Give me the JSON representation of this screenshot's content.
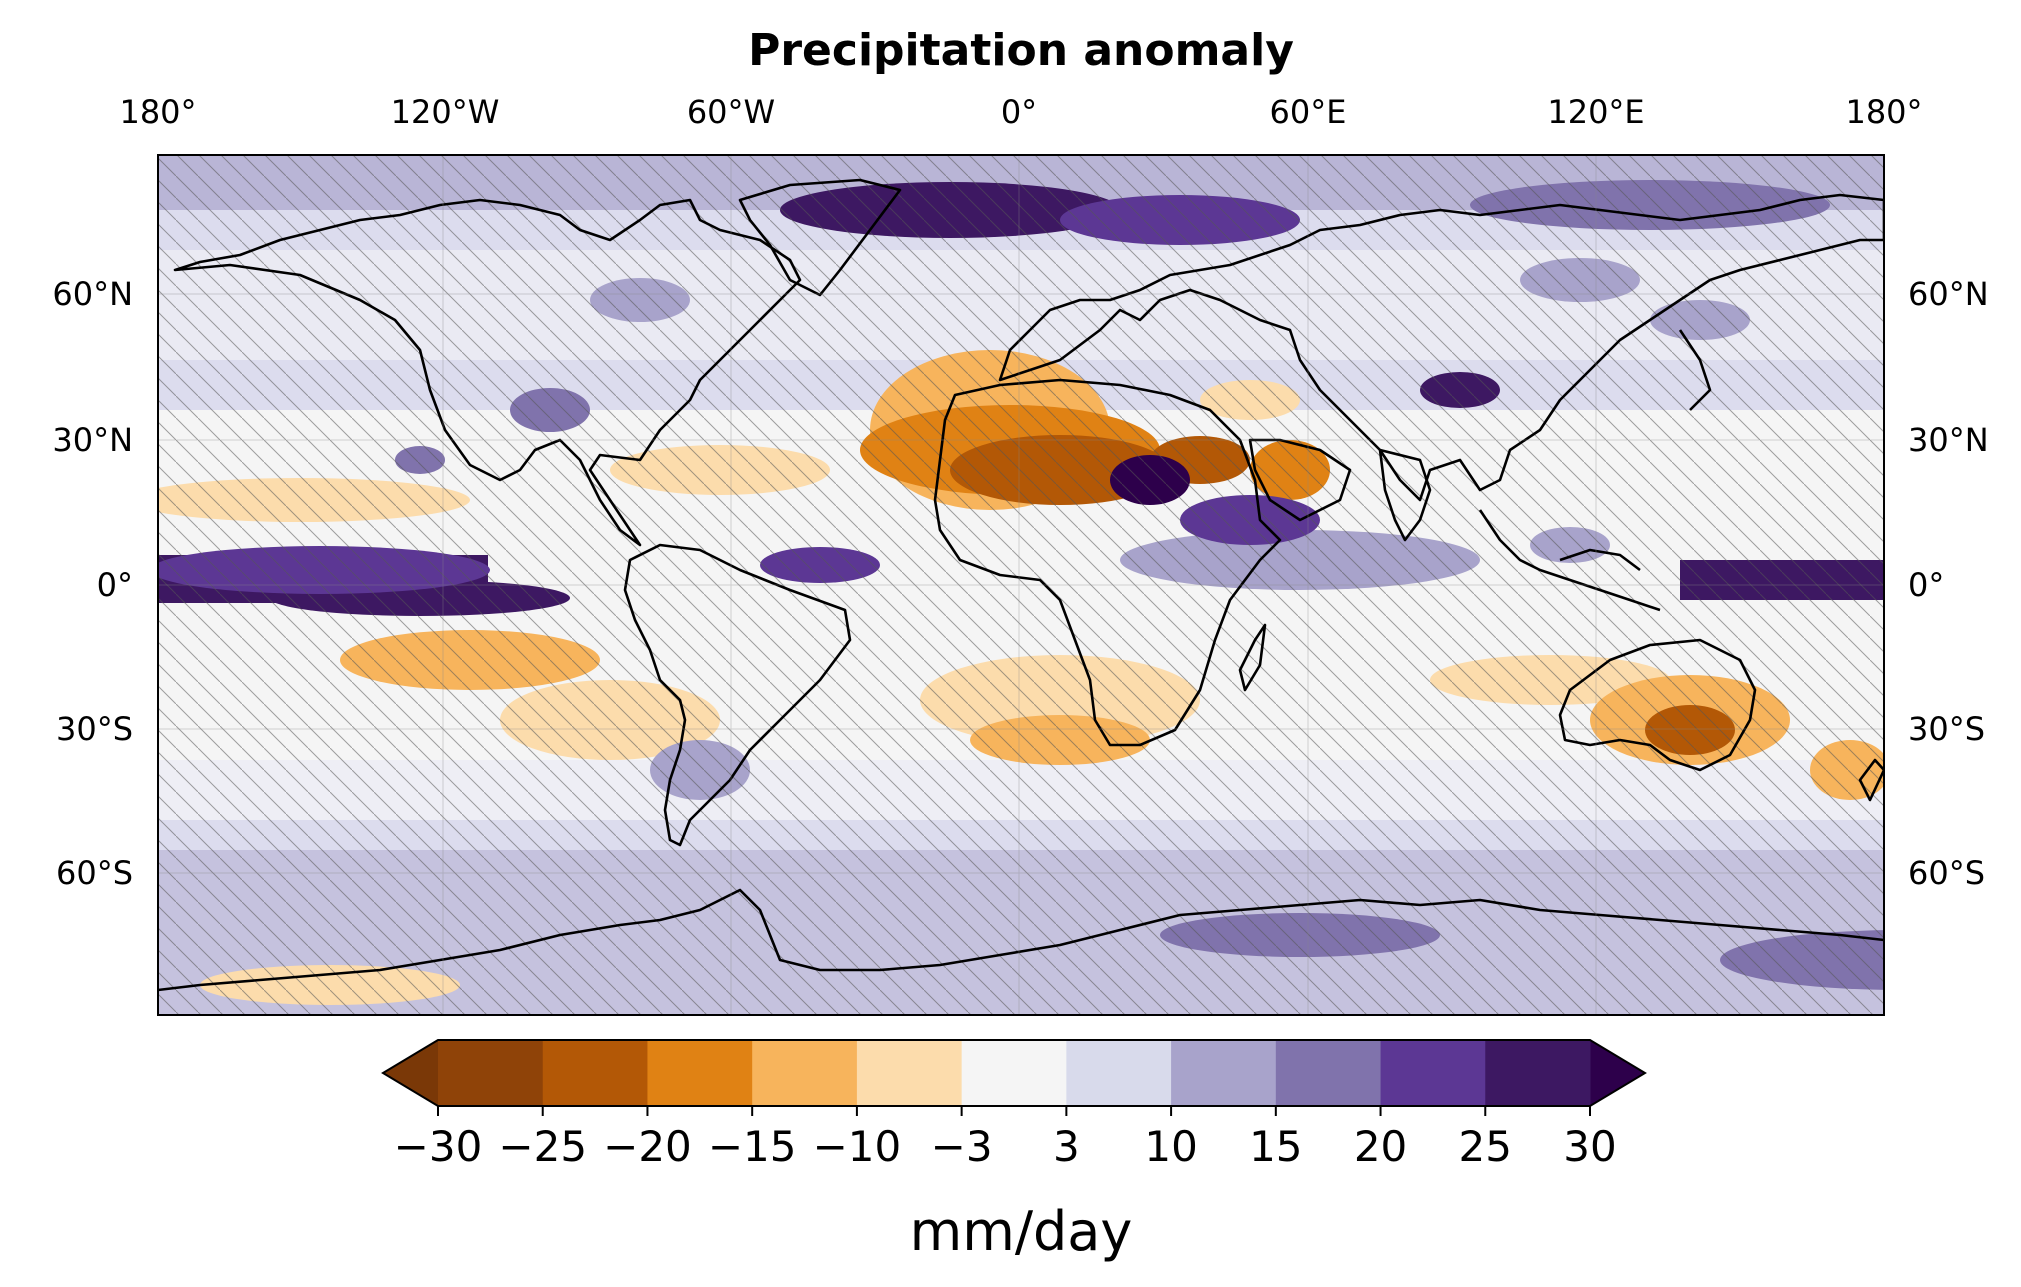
{
  "title": "Precipitation anomaly",
  "lon_ticks": [
    "180°",
    "120°W",
    "60°W",
    "0°",
    "60°E",
    "120°E",
    "180°"
  ],
  "lat_ticks": [
    "60°N",
    "30°N",
    "0°",
    "30°S",
    "60°S"
  ],
  "colorbar": {
    "label": "mm/day",
    "ticks": [
      "−30",
      "−25",
      "−20",
      "−15",
      "−10",
      "−3",
      "3",
      "10",
      "15",
      "20",
      "25",
      "30"
    ],
    "levels": [
      -30,
      -25,
      -20,
      -15,
      -10,
      -3,
      3,
      10,
      15,
      20,
      25,
      30
    ],
    "colors": [
      "#8f4308",
      "#b35806",
      "#e08214",
      "#f7b45c",
      "#fcdcac",
      "#f5f5f5",
      "#d8daeb",
      "#a8a3cb",
      "#8073ac",
      "#5c3794",
      "#3d1862"
    ],
    "extend_low_color": "#7a3807",
    "extend_high_color": "#2d004b",
    "extend": "both"
  },
  "map": {
    "projection": "PlateCarree",
    "background_color": "#dcdcee",
    "hatching": "significance stippling (diagonal hatch)",
    "coastline_color": "#000000"
  }
}
